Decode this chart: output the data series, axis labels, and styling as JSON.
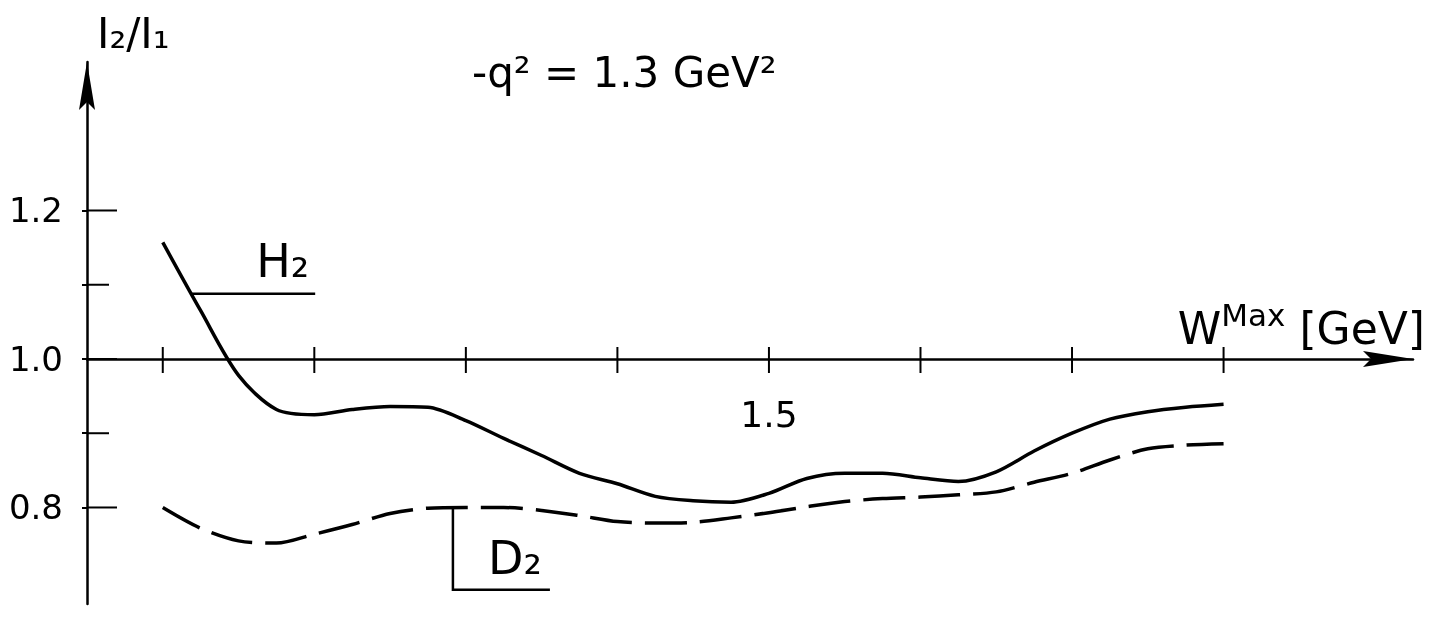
{
  "chart_data": {
    "type": "line",
    "title": "-q² = 1.3 GeV²",
    "xlabel": "W$^{Max}$ [GeV]",
    "ylabel": "I₂/I₁",
    "categories": [
      null,
      null,
      null,
      null,
      null,
      null,
      null,
      null,
      null,
      null,
      null,
      null,
      null,
      null,
      null,
      null,
      null,
      null,
      "1.5",
      null,
      null,
      null,
      null,
      null,
      null,
      null,
      null,
      null,
      null,
      null,
      null,
      null,
      null,
      null,
      null,
      null
    ],
    "series": [
      {
        "name": "H₂",
        "color": "#000000",
        "line_style": "solid",
        "values": [
          null,
          null,
          1.157,
          1.065,
          0.978,
          0.932,
          0.925,
          0.932,
          0.936,
          0.935,
          0.917,
          0.893,
          0.87,
          0.846,
          0.832,
          0.815,
          0.809,
          0.807,
          0.819,
          0.839,
          0.846,
          0.846,
          0.84,
          0.835,
          0.848,
          0.876,
          0.9,
          0.919,
          0.929,
          0.935,
          0.939,
          null,
          null,
          null,
          null,
          null
        ]
      },
      {
        "name": "D₂",
        "color": "#000000",
        "line_style": "dashed",
        "values": [
          null,
          null,
          0.8,
          0.772,
          0.755,
          0.752,
          0.764,
          0.777,
          0.792,
          0.799,
          0.8,
          0.8,
          0.796,
          0.789,
          0.781,
          0.779,
          0.78,
          0.786,
          0.793,
          0.801,
          0.808,
          0.812,
          0.814,
          0.817,
          0.821,
          0.834,
          0.846,
          0.864,
          0.879,
          0.884,
          0.886,
          null,
          null,
          null,
          null,
          null
        ]
      }
    ],
    "ylim": [
      0.67,
      1.4
    ],
    "yticks": [
      0.8,
      {
        "value": 0.9,
        "label": null
      },
      {
        "value": 1,
        "label": "1.0"
      },
      {
        "value": 1.1,
        "label": null
      },
      1.2
    ],
    "ref_lines": [
      {
        "axis": "y",
        "value": 1
      }
    ]
  }
}
